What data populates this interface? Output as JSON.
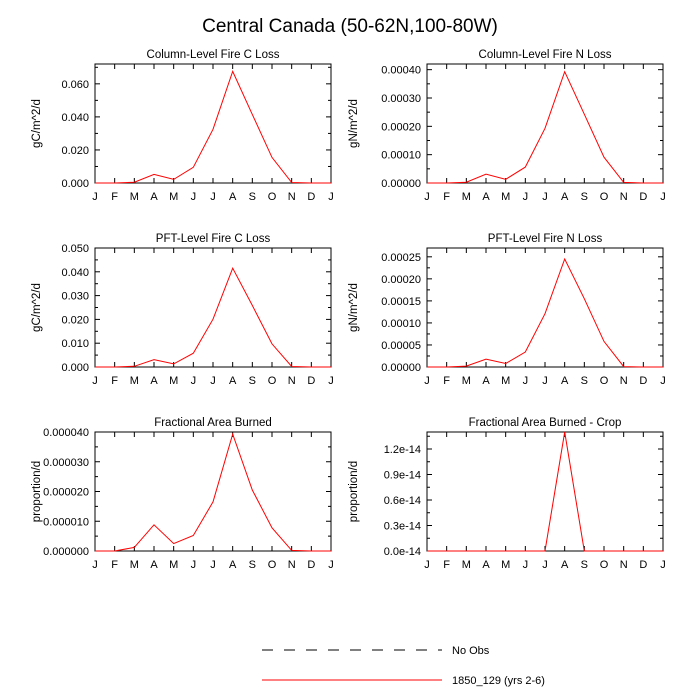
{
  "figure": {
    "title": "Central Canada (50-62N,100-80W)"
  },
  "legend": {
    "entries": [
      {
        "label": "No Obs",
        "style": "dashed",
        "color": "#000000"
      },
      {
        "label": "1850_129 (yrs 2-6)",
        "style": "solid",
        "color": "#ff0000"
      }
    ]
  },
  "chart_data": [
    {
      "type": "line",
      "title": "Column-Level Fire C Loss",
      "xlabel": "",
      "ylabel": "gC/m^2/d",
      "categories": [
        "J",
        "F",
        "M",
        "A",
        "M",
        "J",
        "J",
        "A",
        "S",
        "O",
        "N",
        "D",
        "J"
      ],
      "ylim": [
        0,
        0.072
      ],
      "yticks": [
        0,
        0.02,
        0.04,
        0.06
      ],
      "ytick_labels": [
        "0.000",
        "0.020",
        "0.040",
        "0.060"
      ],
      "series": [
        {
          "name": "1850_129 (yrs 2-6)",
          "color": "#ff0000",
          "values": [
            0,
            0,
            0.0005,
            0.0052,
            0.0022,
            0.0095,
            0.0325,
            0.0675,
            0.0415,
            0.0155,
            0.0003,
            0,
            0
          ]
        }
      ]
    },
    {
      "type": "line",
      "title": "Column-Level Fire N Loss",
      "xlabel": "",
      "ylabel": "gN/m^2/d",
      "categories": [
        "J",
        "F",
        "M",
        "A",
        "M",
        "J",
        "J",
        "A",
        "S",
        "O",
        "N",
        "D",
        "J"
      ],
      "ylim": [
        0,
        0.00042
      ],
      "yticks": [
        0,
        0.0001,
        0.0002,
        0.0003,
        0.0004
      ],
      "ytick_labels": [
        "0.00000",
        "0.00010",
        "0.00020",
        "0.00030",
        "0.00040"
      ],
      "series": [
        {
          "name": "1850_129 (yrs 2-6)",
          "color": "#ff0000",
          "values": [
            0,
            0,
            3e-06,
            3.1e-05,
            1.3e-05,
            5.6e-05,
            0.000193,
            0.000393,
            0.000243,
            9.1e-05,
            2e-06,
            0,
            0
          ]
        }
      ]
    },
    {
      "type": "line",
      "title": "PFT-Level Fire C Loss",
      "xlabel": "",
      "ylabel": "gC/m^2/d",
      "categories": [
        "J",
        "F",
        "M",
        "A",
        "M",
        "J",
        "J",
        "A",
        "S",
        "O",
        "N",
        "D",
        "J"
      ],
      "ylim": [
        0,
        0.05
      ],
      "yticks": [
        0,
        0.01,
        0.02,
        0.03,
        0.04,
        0.05
      ],
      "ytick_labels": [
        "0.000",
        "0.010",
        "0.020",
        "0.030",
        "0.040",
        "0.050"
      ],
      "series": [
        {
          "name": "1850_129 (yrs 2-6)",
          "color": "#ff0000",
          "values": [
            0,
            0,
            0.0003,
            0.0031,
            0.0013,
            0.0058,
            0.0201,
            0.0415,
            0.0259,
            0.0097,
            0.0002,
            0,
            0
          ]
        }
      ]
    },
    {
      "type": "line",
      "title": "PFT-Level Fire N Loss",
      "xlabel": "",
      "ylabel": "gN/m^2/d",
      "categories": [
        "J",
        "F",
        "M",
        "A",
        "M",
        "J",
        "J",
        "A",
        "S",
        "O",
        "N",
        "D",
        "J"
      ],
      "ylim": [
        0,
        0.00027
      ],
      "yticks": [
        0,
        5e-05,
        0.0001,
        0.00015,
        0.0002,
        0.00025
      ],
      "ytick_labels": [
        "0.00000",
        "0.00005",
        "0.00010",
        "0.00015",
        "0.00020",
        "0.00025"
      ],
      "series": [
        {
          "name": "1850_129 (yrs 2-6)",
          "color": "#ff0000",
          "values": [
            0,
            0,
            2e-06,
            1.8e-05,
            8e-06,
            3.4e-05,
            0.000121,
            0.000245,
            0.000155,
            5.8e-05,
            1e-06,
            0,
            0
          ]
        }
      ]
    },
    {
      "type": "line",
      "title": "Fractional Area Burned",
      "xlabel": "",
      "ylabel": "proportion/d",
      "categories": [
        "J",
        "F",
        "M",
        "A",
        "M",
        "J",
        "J",
        "A",
        "S",
        "O",
        "N",
        "D",
        "J"
      ],
      "ylim": [
        0,
        4e-05
      ],
      "yticks": [
        0,
        1e-05,
        2e-05,
        3e-05,
        4e-05
      ],
      "ytick_labels": [
        "0.000000",
        "0.000010",
        "0.000020",
        "0.000030",
        "0.000040"
      ],
      "series": [
        {
          "name": "1850_129 (yrs 2-6)",
          "color": "#ff0000",
          "values": [
            0,
            0,
            1.2e-06,
            8.8e-06,
            2.5e-06,
            5.2e-06,
            1.65e-05,
            3.93e-05,
            2.05e-05,
            7.8e-06,
            2e-07,
            0,
            0
          ]
        }
      ]
    },
    {
      "type": "line",
      "title": "Fractional Area Burned - Crop",
      "xlabel": "",
      "ylabel": "proportion/d",
      "categories": [
        "J",
        "F",
        "M",
        "A",
        "M",
        "J",
        "J",
        "A",
        "S",
        "O",
        "N",
        "D",
        "J"
      ],
      "ylim": [
        0,
        1.4e-14
      ],
      "yticks": [
        0,
        3e-15,
        6e-15,
        9e-15,
        1.2e-14
      ],
      "ytick_labels": [
        "0.0e-14",
        "0.3e-14",
        "0.6e-14",
        "0.9e-14",
        "1.2e-14"
      ],
      "series": [
        {
          "name": "1850_129 (yrs 2-6)",
          "color": "#ff0000",
          "values": [
            0,
            0,
            0,
            0,
            0,
            0,
            0,
            1.4e-14,
            0,
            0,
            0,
            0,
            0
          ]
        }
      ]
    }
  ]
}
